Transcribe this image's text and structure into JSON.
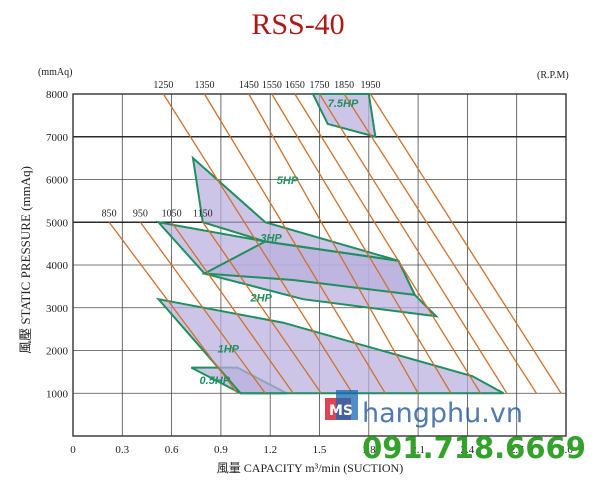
{
  "chart_data": {
    "type": "line",
    "title": "RSS-40",
    "xlabel": "風量 CAPACITY m³/min (SUCTION)",
    "ylabel": "風壓 STATIC PRESSURE (mmAq)",
    "y_unit": "(mmAq)",
    "rpm_label": "(R.P.M)",
    "xlim": [
      0,
      3.0
    ],
    "ylim": [
      0,
      8000
    ],
    "x_ticks": [
      "0",
      "0.3",
      "0.6",
      "0.9",
      "1.2",
      "1.5",
      "1.8",
      "2.1",
      "2.4",
      "2.7",
      "3.0"
    ],
    "y_ticks": [
      "1000",
      "2000",
      "3000",
      "4000",
      "5000",
      "6000",
      "7000",
      "8000"
    ],
    "grid": true,
    "rpm_lines": [
      {
        "rpm": "850",
        "label_x": 0.22,
        "label_y": 5000,
        "points": [
          [
            0.22,
            5000
          ],
          [
            1.0,
            1000
          ]
        ]
      },
      {
        "rpm": "950",
        "label_x": 0.41,
        "label_y": 5000,
        "points": [
          [
            0.41,
            5000
          ],
          [
            1.17,
            1000
          ]
        ]
      },
      {
        "rpm": "1050",
        "label_x": 0.6,
        "label_y": 5000,
        "points": [
          [
            0.6,
            5000
          ],
          [
            1.34,
            1000
          ]
        ]
      },
      {
        "rpm": "1150",
        "label_x": 0.79,
        "label_y": 5000,
        "points": [
          [
            0.79,
            5000
          ],
          [
            1.51,
            1000
          ]
        ]
      },
      {
        "rpm": "1250",
        "label_x": 0.55,
        "label_y": 8000,
        "points": [
          [
            0.55,
            8000
          ],
          [
            1.7,
            1000
          ]
        ]
      },
      {
        "rpm": "1350",
        "label_x": 0.8,
        "label_y": 8000,
        "points": [
          [
            0.8,
            8000
          ],
          [
            1.9,
            1000
          ]
        ]
      },
      {
        "rpm": "1450",
        "label_x": 1.07,
        "label_y": 8000,
        "points": [
          [
            1.07,
            8000
          ],
          [
            2.1,
            1000
          ]
        ]
      },
      {
        "rpm": "1550",
        "label_x": 1.21,
        "label_y": 8000,
        "points": [
          [
            1.21,
            8000
          ],
          [
            2.3,
            1000
          ]
        ]
      },
      {
        "rpm": "1650",
        "label_x": 1.35,
        "label_y": 8000,
        "points": [
          [
            1.35,
            8000
          ],
          [
            2.48,
            1000
          ]
        ]
      },
      {
        "rpm": "1750",
        "label_x": 1.5,
        "label_y": 8000,
        "points": [
          [
            1.5,
            8000
          ],
          [
            2.64,
            1000
          ]
        ]
      },
      {
        "rpm": "1850",
        "label_x": 1.65,
        "label_y": 8000,
        "points": [
          [
            1.65,
            8000
          ],
          [
            2.82,
            1000
          ]
        ]
      },
      {
        "rpm": "1950",
        "label_x": 1.81,
        "label_y": 8000,
        "points": [
          [
            1.81,
            8000
          ],
          [
            2.97,
            1000
          ]
        ]
      }
    ],
    "hp_regions": [
      {
        "name": "0.5HP",
        "label": [
          0.77,
          1220
        ],
        "polygon": [
          [
            0.72,
            1600
          ],
          [
            1.0,
            1600
          ],
          [
            1.3,
            1000
          ],
          [
            1.02,
            1000
          ]
        ]
      },
      {
        "name": "1HP",
        "label": [
          0.88,
          1950
        ],
        "polygon": [
          [
            0.52,
            3200
          ],
          [
            1.28,
            2650
          ],
          [
            2.43,
            1400
          ],
          [
            2.62,
            1000
          ],
          [
            1.02,
            1000
          ]
        ]
      },
      {
        "name": "2HP",
        "label": [
          1.08,
          3150
        ],
        "polygon": [
          [
            0.52,
            5000
          ],
          [
            1.17,
            4550
          ],
          [
            1.98,
            4100
          ],
          [
            2.08,
            3300
          ],
          [
            2.21,
            2800
          ],
          [
            1.4,
            3200
          ],
          [
            0.8,
            3800
          ]
        ]
      },
      {
        "name": "3HP",
        "label": [
          1.14,
          4550
        ],
        "polygon": [
          [
            1.17,
            4550
          ],
          [
            1.98,
            4100
          ],
          [
            2.08,
            3300
          ],
          [
            1.34,
            3650
          ],
          [
            0.8,
            3800
          ]
        ]
      },
      {
        "name": "5HP",
        "label": [
          1.24,
          5900
        ],
        "polygon": [
          [
            0.73,
            6500
          ],
          [
            1.17,
            5000
          ],
          [
            1.98,
            4100
          ],
          [
            1.17,
            4550
          ],
          [
            0.79,
            5000
          ]
        ]
      },
      {
        "name": "7.5HP",
        "label": [
          1.55,
          7700
        ],
        "polygon": [
          [
            1.46,
            8000
          ],
          [
            1.8,
            8000
          ],
          [
            1.84,
            7000
          ],
          [
            1.55,
            7300
          ]
        ]
      }
    ]
  },
  "watermark": {
    "logo": "MS",
    "brand": "hangphu.vn",
    "phone": "091.718.6669"
  }
}
